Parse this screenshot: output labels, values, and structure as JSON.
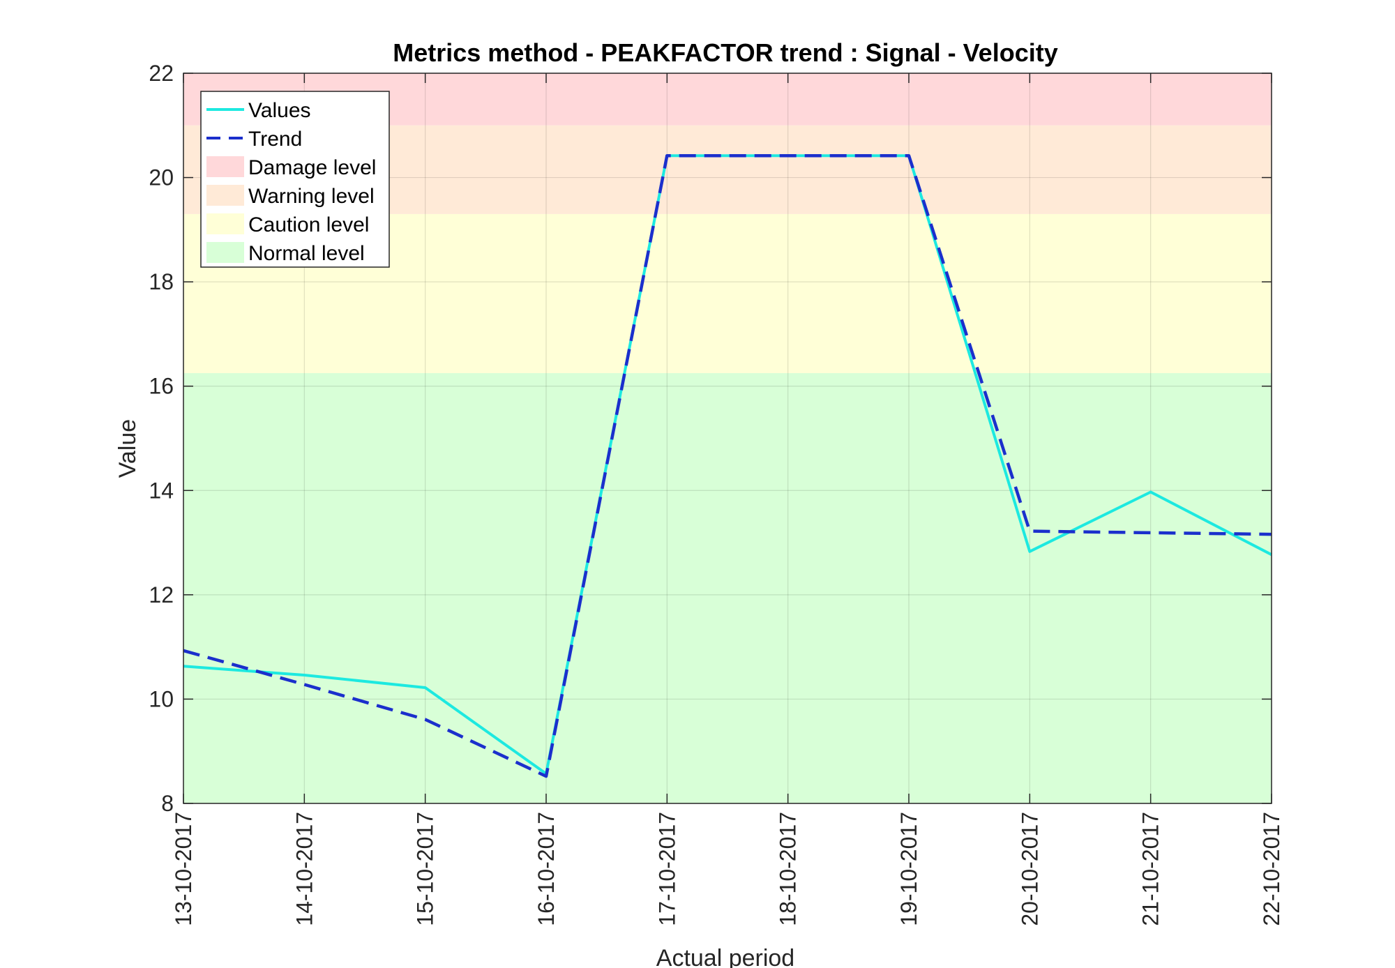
{
  "chart_data": {
    "type": "line",
    "title": "Metrics method - PEAKFACTOR trend : Signal - Velocity",
    "xlabel": "Actual period",
    "ylabel": "Value",
    "ylim": [
      8,
      22
    ],
    "yticks": [
      8,
      10,
      12,
      14,
      16,
      18,
      20,
      22
    ],
    "grid": true,
    "legend_position": "top-left",
    "categories": [
      "13-10-2017",
      "14-10-2017",
      "15-10-2017",
      "16-10-2017",
      "17-10-2017",
      "18-10-2017",
      "19-10-2017",
      "20-10-2017",
      "21-10-2017",
      "22-10-2017"
    ],
    "series": [
      {
        "name": "Values",
        "style": "solid",
        "color": "#1de9e0",
        "values": [
          10.63,
          10.46,
          10.22,
          8.57,
          20.42,
          20.42,
          20.42,
          12.83,
          13.97,
          12.77
        ]
      },
      {
        "name": "Trend",
        "style": "dashed",
        "color": "#1b2fcc",
        "values": [
          10.93,
          10.28,
          9.61,
          8.52,
          20.42,
          20.42,
          20.42,
          13.22,
          13.19,
          13.16
        ]
      }
    ],
    "bands": [
      {
        "name": "Damage level",
        "from": 21.0,
        "to": 22.0,
        "color": "#ffd8da"
      },
      {
        "name": "Warning level",
        "from": 19.3,
        "to": 21.0,
        "color": "#ffead7"
      },
      {
        "name": "Caution level",
        "from": 16.25,
        "to": 19.3,
        "color": "#ffffd7"
      },
      {
        "name": "Normal level",
        "from": 8.0,
        "to": 16.25,
        "color": "#d8ffd7"
      }
    ]
  }
}
